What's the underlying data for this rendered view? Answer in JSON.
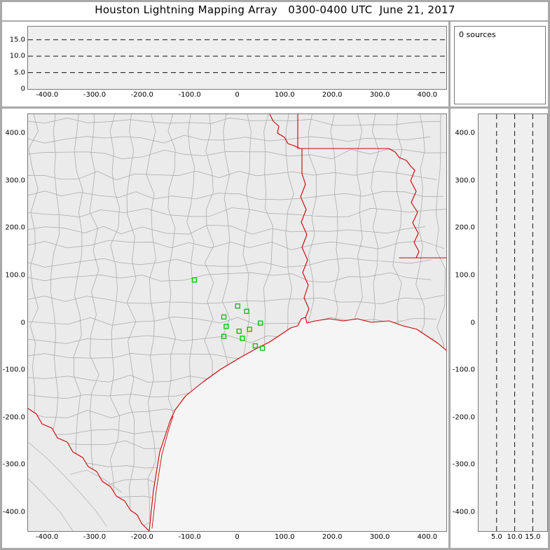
{
  "header": {
    "title": "Houston Lightning Mapping Array   0300-0400 UTC  June 21, 2017"
  },
  "sources_panel": {
    "label": "0 sources",
    "count": 0
  },
  "colors": {
    "frame": "#a9a9a9",
    "state_border": "#cc0000",
    "county_line": "#a8a8a8",
    "station": "#00c000",
    "plot_bg": "#efefef",
    "land": "#ebebeb",
    "water": "#f5f5f5",
    "dashed_line": "#111111"
  },
  "chart_data": [
    {
      "id": "alt-vs-ew",
      "type": "scatter",
      "description": "Altitude (km) vs east-west distance (km); empty, 0 lightning sources",
      "xlim": [
        -440,
        440
      ],
      "ylim": [
        0,
        19
      ],
      "x_ticks": [
        {
          "v": -400,
          "label": "-400.0"
        },
        {
          "v": -300,
          "label": "-300.0"
        },
        {
          "v": -200,
          "label": "-200.0"
        },
        {
          "v": -100,
          "label": "-100.0"
        },
        {
          "v": 0,
          "label": "0"
        },
        {
          "v": 100,
          "label": "100.0"
        },
        {
          "v": 200,
          "label": "200.0"
        },
        {
          "v": 300,
          "label": "300.0"
        },
        {
          "v": 400,
          "label": "400.0"
        }
      ],
      "y_ticks": [
        {
          "v": 15,
          "label": "15.0"
        },
        {
          "v": 10,
          "label": "10.0"
        },
        {
          "v": 5,
          "label": "5.0"
        },
        {
          "v": 0,
          "label": "0"
        }
      ],
      "gridlines_y": [
        5,
        10,
        15
      ],
      "points": []
    },
    {
      "id": "plan-view-map",
      "type": "scatter",
      "description": "Plan view map with county lines (gray), state borders and coast (red); green squares are LMA stations; 0 lightning sources",
      "xlim": [
        -440,
        440
      ],
      "ylim": [
        -440,
        440
      ],
      "x_ticks": [
        {
          "v": -400,
          "label": "-400.0"
        },
        {
          "v": -300,
          "label": "-300.0"
        },
        {
          "v": -200,
          "label": "-200.0"
        },
        {
          "v": -100,
          "label": "-100.0"
        },
        {
          "v": 0,
          "label": "0"
        },
        {
          "v": 100,
          "label": "100.0"
        },
        {
          "v": 200,
          "label": "200.0"
        },
        {
          "v": 300,
          "label": "300.0"
        },
        {
          "v": 400,
          "label": "400.0"
        }
      ],
      "y_ticks": [
        {
          "v": 400,
          "label": "400.0"
        },
        {
          "v": 300,
          "label": "300.0"
        },
        {
          "v": 200,
          "label": "200.0"
        },
        {
          "v": 100,
          "label": "100.0"
        },
        {
          "v": 0,
          "label": "0"
        },
        {
          "v": -100,
          "label": "-100.0"
        },
        {
          "v": -200,
          "label": "-200.0"
        },
        {
          "v": -300,
          "label": "-300.0"
        },
        {
          "v": -400,
          "label": "-400.0"
        }
      ],
      "stations": [
        [
          -90,
          90
        ],
        [
          1,
          35
        ],
        [
          -28,
          12
        ],
        [
          20,
          24
        ],
        [
          -23,
          -8
        ],
        [
          -28,
          -29
        ],
        [
          4,
          -18
        ],
        [
          11,
          -33
        ],
        [
          26,
          -14
        ],
        [
          49,
          -1
        ],
        [
          38,
          -49
        ],
        [
          53,
          -54
        ]
      ],
      "points": []
    },
    {
      "id": "alt-vs-ns",
      "type": "scatter",
      "description": "North-south distance (km) vs altitude (km); empty, 0 lightning sources",
      "xlim": [
        0,
        19
      ],
      "ylim": [
        -440,
        440
      ],
      "x_ticks": [
        {
          "v": 5,
          "label": "5.0"
        },
        {
          "v": 10,
          "label": "10.0"
        },
        {
          "v": 15,
          "label": "15.0"
        }
      ],
      "y_ticks": [
        {
          "v": 400,
          "label": "400.0"
        },
        {
          "v": 300,
          "label": "300.0"
        },
        {
          "v": 200,
          "label": "200.0"
        },
        {
          "v": 100,
          "label": "100.0"
        },
        {
          "v": 0,
          "label": "0"
        },
        {
          "v": -100,
          "label": "-100.0"
        },
        {
          "v": -200,
          "label": "-200.0"
        },
        {
          "v": -300,
          "label": "-300.0"
        },
        {
          "v": -400,
          "label": "-400.0"
        }
      ],
      "gridlines_x": [
        5,
        10,
        15
      ],
      "points": []
    }
  ]
}
